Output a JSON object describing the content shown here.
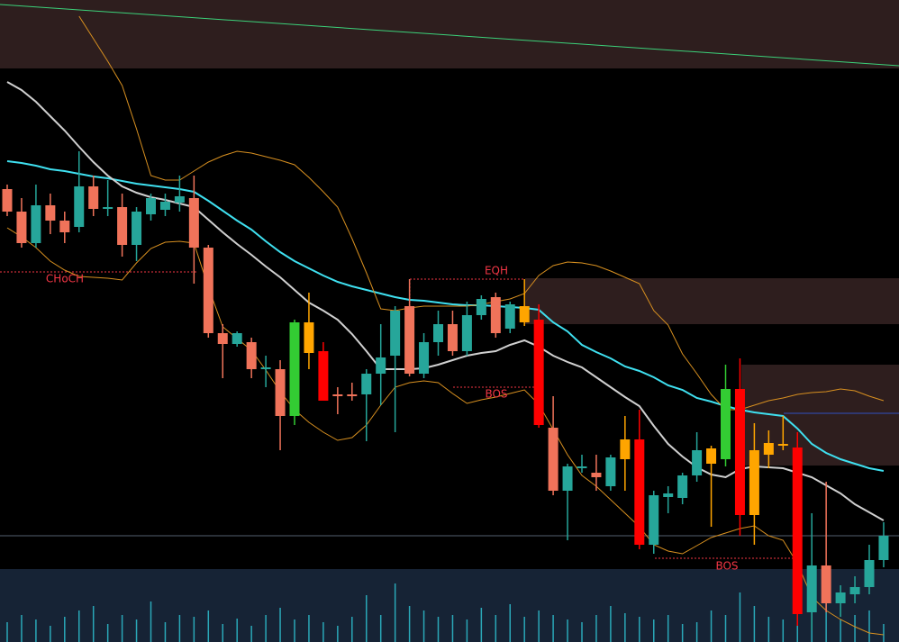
{
  "chart_data": {
    "type": "candlestick",
    "ylim": [
      0,
      713
    ],
    "open": [
      503,
      478,
      443,
      485,
      468,
      461,
      506,
      481,
      483,
      441,
      475,
      480,
      488,
      493,
      438,
      343,
      331,
      333,
      303,
      303,
      251,
      321,
      323,
      273,
      275,
      275,
      298,
      318,
      373,
      298,
      333,
      353,
      323,
      363,
      383,
      348,
      373,
      358,
      238,
      168,
      195,
      188,
      173,
      203,
      225,
      108,
      161,
      160,
      185,
      198,
      203,
      281,
      141,
      208,
      218,
      216,
      33,
      85,
      43,
      53,
      61,
      91
    ],
    "high": [
      508,
      493,
      508,
      498,
      478,
      545,
      518,
      513,
      498,
      483,
      498,
      498,
      518,
      518,
      441,
      353,
      345,
      338,
      318,
      313,
      358,
      388,
      333,
      283,
      288,
      303,
      353,
      373,
      403,
      343,
      368,
      368,
      378,
      385,
      388,
      378,
      403,
      375,
      273,
      198,
      208,
      208,
      208,
      251,
      258,
      168,
      173,
      188,
      233,
      218,
      308,
      315,
      243,
      235,
      251,
      233,
      143,
      178,
      63,
      73,
      108,
      133
    ],
    "low": [
      473,
      438,
      438,
      453,
      443,
      455,
      473,
      473,
      428,
      423,
      468,
      473,
      478,
      398,
      338,
      293,
      328,
      293,
      283,
      213,
      241,
      303,
      268,
      253,
      268,
      223,
      263,
      233,
      295,
      293,
      318,
      318,
      318,
      358,
      338,
      343,
      351,
      238,
      163,
      113,
      188,
      168,
      168,
      168,
      103,
      98,
      143,
      153,
      178,
      128,
      195,
      118,
      108,
      193,
      213,
      18,
      13,
      33,
      28,
      43,
      53,
      83
    ],
    "close": [
      478,
      443,
      485,
      468,
      455,
      506,
      481,
      483,
      441,
      478,
      493,
      489,
      495,
      438,
      343,
      331,
      343,
      303,
      305,
      251,
      355,
      355,
      268,
      275,
      273,
      298,
      316,
      368,
      298,
      333,
      353,
      323,
      363,
      381,
      343,
      375,
      355,
      241,
      168,
      195,
      195,
      183,
      205,
      225,
      108,
      163,
      165,
      185,
      213,
      215,
      281,
      141,
      213,
      221,
      220,
      31,
      85,
      43,
      55,
      61,
      91,
      118
    ],
    "colors": [
      "#f0735a",
      "#f0735a",
      "#26a69a",
      "#f0735a",
      "#f0735a",
      "#26a69a",
      "#f0735a",
      "#26a69a",
      "#f0735a",
      "#26a69a",
      "#26a69a",
      "#26a69a",
      "#26a69a",
      "#f0735a",
      "#f0735a",
      "#f0735a",
      "#26a69a",
      "#f0735a",
      "#26a69a",
      "#f0735a",
      "#33cc33",
      "#ffa500",
      "#ff0000",
      "#f0735a",
      "#f0735a",
      "#26a69a",
      "#26a69a",
      "#26a69a",
      "#f0735a",
      "#26a69a",
      "#26a69a",
      "#f0735a",
      "#26a69a",
      "#26a69a",
      "#f0735a",
      "#26a69a",
      "#ffa500",
      "#ff0000",
      "#f0735a",
      "#26a69a",
      "#26a69a",
      "#f0735a",
      "#26a69a",
      "#ffa500",
      "#ff0000",
      "#26a69a",
      "#26a69a",
      "#26a69a",
      "#26a69a",
      "#ffa500",
      "#33cc33",
      "#ff0000",
      "#ffa500",
      "#ffa500",
      "#ffa500",
      "#ff0000",
      "#26a69a",
      "#f0735a",
      "#26a69a",
      "#26a69a",
      "#26a69a",
      "#26a69a"
    ],
    "series": [
      {
        "color": "#3fe0f0",
        "values": [
          534,
          532,
          529,
          525,
          523,
          520,
          517,
          515,
          512,
          509,
          507,
          505,
          503,
          500,
          490,
          479,
          468,
          458,
          445,
          433,
          423,
          415,
          407,
          400,
          395,
          391,
          387,
          383,
          380,
          379,
          377,
          375,
          374,
          374,
          373,
          372,
          371,
          369,
          355,
          345,
          330,
          322,
          315,
          306,
          301,
          294,
          285,
          280,
          271,
          267,
          262,
          258,
          255,
          253,
          251,
          237,
          220,
          210,
          203,
          198,
          193,
          190
        ]
      },
      {
        "color": "#d0d0d0",
        "values": [
          622,
          613,
          600,
          584,
          568,
          550,
          533,
          518,
          506,
          499,
          494,
          491,
          487,
          483,
          469,
          455,
          442,
          430,
          417,
          405,
          391,
          377,
          368,
          358,
          342,
          323,
          303,
          303,
          303,
          304,
          308,
          313,
          318,
          321,
          323,
          330,
          335,
          328,
          318,
          311,
          305,
          294,
          283,
          272,
          262,
          240,
          220,
          206,
          194,
          186,
          183,
          192,
          195,
          194,
          193,
          188,
          183,
          174,
          165,
          153,
          144,
          135
        ]
      },
      {
        "color": "#d89020",
        "values": [
          null,
          null,
          null,
          null,
          null,
          695,
          670,
          645,
          618,
          570,
          518,
          513,
          513,
          523,
          533,
          540,
          545,
          543,
          539,
          535,
          530,
          516,
          500,
          483,
          448,
          410,
          370,
          368,
          371,
          373,
          373,
          373,
          373,
          375,
          378,
          381,
          387,
          407,
          418,
          422,
          421,
          418,
          412,
          405,
          398,
          368,
          352,
          320,
          298,
          275,
          258,
          258,
          263,
          268,
          271,
          275,
          277,
          278,
          281,
          279,
          273,
          268
        ]
      },
      {
        "color": "#d89020",
        "values": [
          460,
          450,
          438,
          423,
          413,
          406,
          405,
          404,
          402,
          421,
          437,
          444,
          445,
          443,
          394,
          350,
          337,
          324,
          302,
          278,
          258,
          244,
          233,
          224,
          227,
          241,
          263,
          283,
          288,
          290,
          288,
          276,
          265,
          269,
          272,
          276,
          280,
          264,
          236,
          208,
          185,
          173,
          158,
          143,
          128,
          108,
          101,
          98,
          107,
          116,
          121,
          126,
          129,
          118,
          113,
          87,
          50,
          35,
          25,
          17,
          10,
          8
        ]
      }
    ],
    "volume": {
      "ylim": [
        0,
        80
      ],
      "color": "#2aa8b8",
      "values": [
        22,
        30,
        25,
        18,
        28,
        35,
        40,
        20,
        30,
        25,
        45,
        22,
        30,
        28,
        35,
        20,
        26,
        18,
        30,
        38,
        25,
        30,
        22,
        18,
        28,
        52,
        30,
        65,
        40,
        35,
        28,
        30,
        25,
        38,
        30,
        42,
        28,
        35,
        30,
        25,
        22,
        30,
        40,
        32,
        28,
        25,
        30,
        20,
        22,
        35,
        30,
        55,
        40,
        28,
        25,
        30,
        45,
        58,
        25,
        30,
        35,
        20
      ]
    },
    "annotations": [
      "CHoCH",
      "EQH",
      "BOS",
      "BOS"
    ]
  }
}
